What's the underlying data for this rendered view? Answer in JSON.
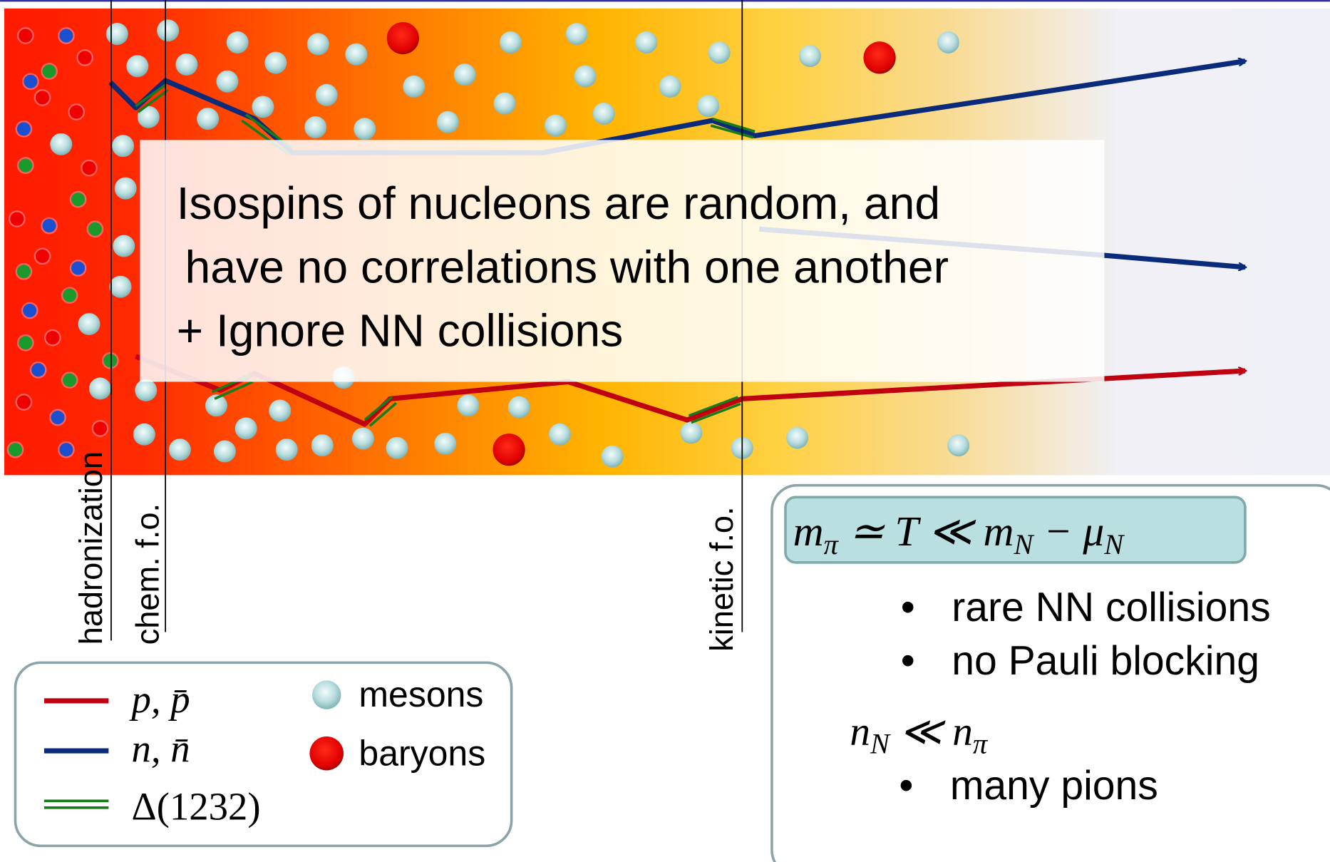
{
  "overlay_text": {
    "lines": [
      "Isospins of nucleons are random, and",
      "have no correlations with one another",
      "+ Ignore NN collisions"
    ]
  },
  "stage_labels": [
    "hadronization",
    "chem. f.o.",
    "kinetic f.o."
  ],
  "legend": {
    "lines": [
      {
        "label": "p, p̄"
      },
      {
        "label": "n, n̄"
      },
      {
        "label": "Δ(1232)"
      }
    ],
    "dots": [
      {
        "label": "mesons"
      },
      {
        "label": "baryons"
      }
    ]
  },
  "conditions": {
    "formula": [
      {
        "text": "m"
      },
      {
        "sub": "π"
      },
      {
        "text": " ≃ T ≪ m"
      },
      {
        "sub": "N"
      },
      {
        "text": " − μ"
      },
      {
        "sub": "N"
      }
    ],
    "bullets_a": [
      "rare NN collisions",
      "no Pauli blocking"
    ],
    "formula2": [
      {
        "text": "n"
      },
      {
        "sub": "N"
      },
      {
        "text": " ≪ n"
      },
      {
        "sub": "π"
      }
    ],
    "bullets_b": [
      "many pions"
    ]
  }
}
